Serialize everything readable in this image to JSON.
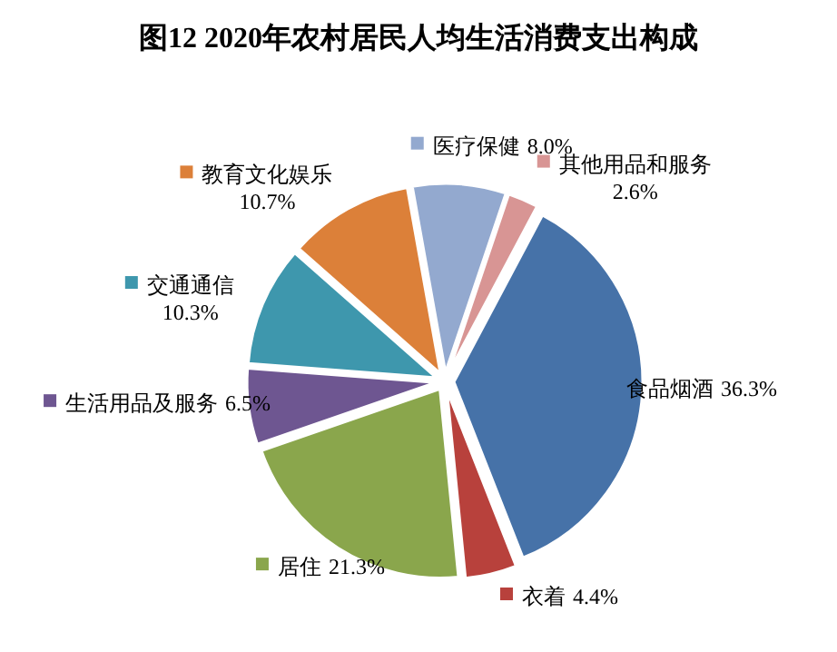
{
  "chart_data": {
    "type": "pie",
    "title": "图12   2020年农村居民人均生活消费支出构成",
    "categories": [
      "食品烟酒",
      "衣着",
      "居住",
      "生活用品及服务",
      "交通通信",
      "教育文化娱乐",
      "医疗保健",
      "其他用品和服务"
    ],
    "values": [
      36.3,
      4.4,
      21.3,
      6.5,
      10.3,
      10.7,
      8.0,
      2.6
    ],
    "colors": [
      "#4672a8",
      "#b8413c",
      "#8aa64c",
      "#6e5691",
      "#3e97ad",
      "#dc8039",
      "#93a9cf",
      "#d89594"
    ],
    "value_labels": [
      "36.3%",
      "4.4%",
      "21.3%",
      "6.5%",
      "10.3%",
      "10.7%",
      "8.0%",
      "2.6%"
    ],
    "legend": "top"
  }
}
